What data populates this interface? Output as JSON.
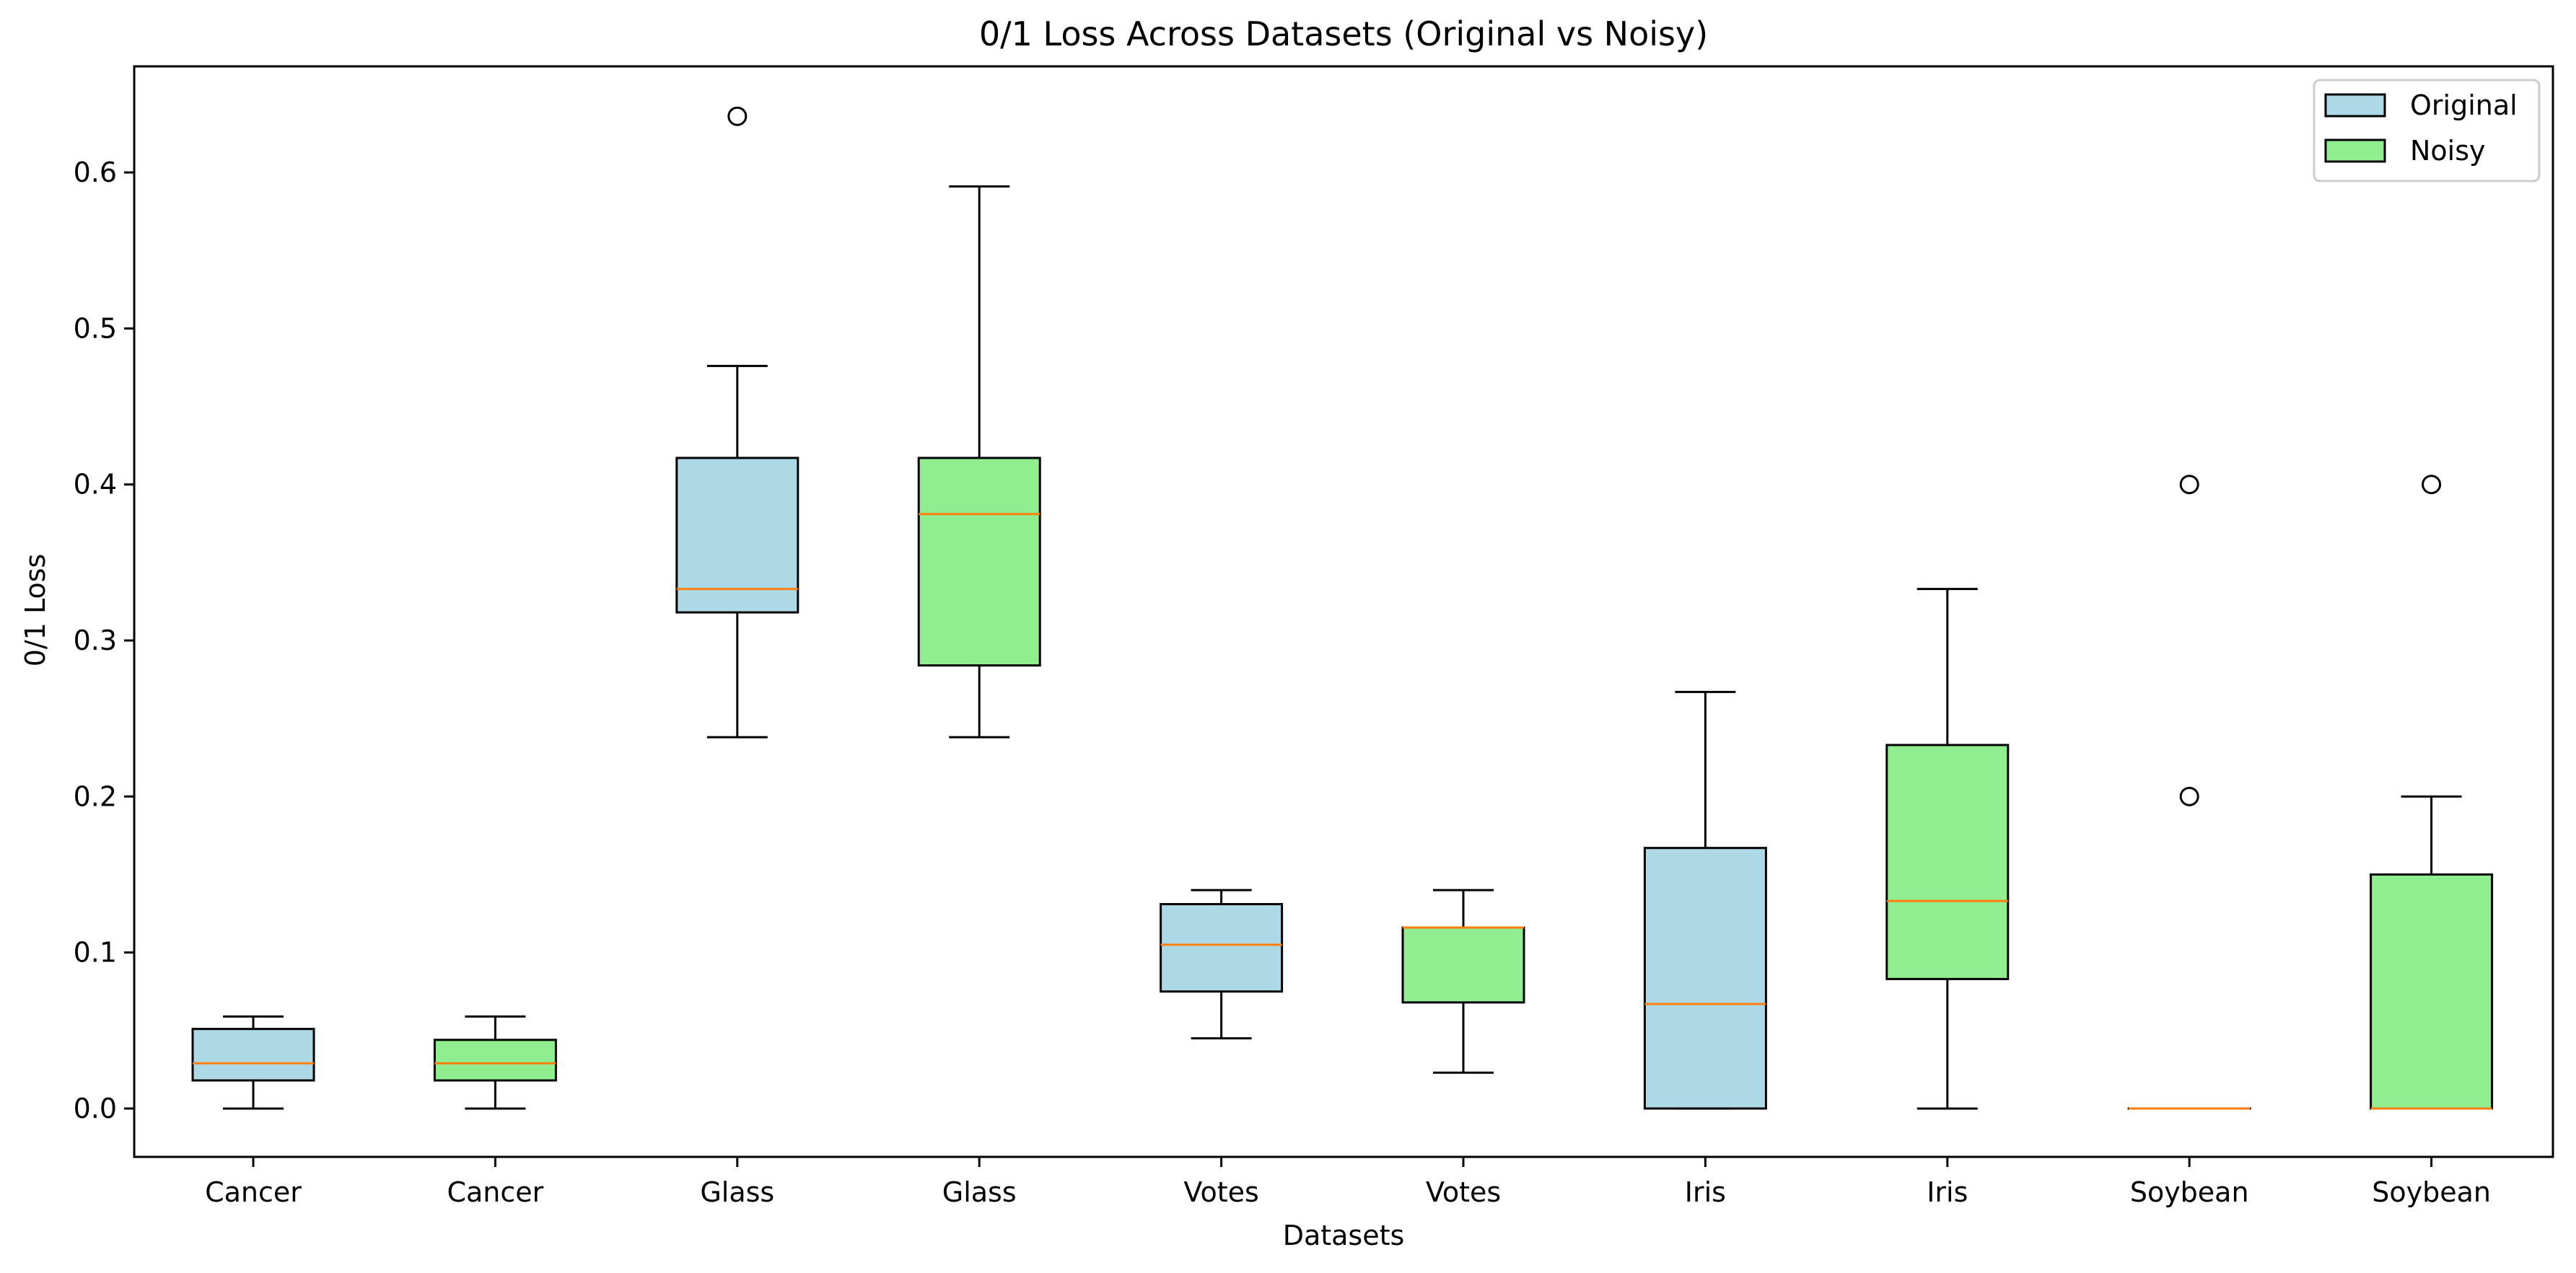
{
  "chart_data": {
    "type": "boxplot",
    "title": "0/1 Loss Across Datasets (Original vs Noisy)",
    "xlabel": "Datasets",
    "ylabel": "0/1 Loss",
    "ylim": [
      -0.031,
      0.668
    ],
    "yticks": [
      0.0,
      0.1,
      0.2,
      0.3,
      0.4,
      0.5,
      0.6
    ],
    "ytick_labels": [
      "0.0",
      "0.1",
      "0.2",
      "0.3",
      "0.4",
      "0.5",
      "0.6"
    ],
    "grid": false,
    "legend": {
      "placement": "top-right",
      "entries": [
        {
          "label": "Original",
          "color": "#add8e6"
        },
        {
          "label": "Noisy",
          "color": "#90ee90"
        }
      ]
    },
    "colors": {
      "original": "#add8e6",
      "noisy": "#90ee90",
      "median": "#ff7f0e",
      "edge": "#000000"
    },
    "categories": [
      "Cancer",
      "Cancer",
      "Glass",
      "Glass",
      "Votes",
      "Votes",
      "Iris",
      "Iris",
      "Soybean",
      "Soybean"
    ],
    "boxes": [
      {
        "label": "Cancer",
        "series": "Original",
        "whisker_low": 0.0,
        "q1": 0.018,
        "median": 0.029,
        "q3": 0.051,
        "whisker_high": 0.059,
        "outliers": []
      },
      {
        "label": "Cancer",
        "series": "Noisy",
        "whisker_low": 0.0,
        "q1": 0.018,
        "median": 0.029,
        "q3": 0.044,
        "whisker_high": 0.059,
        "outliers": []
      },
      {
        "label": "Glass",
        "series": "Original",
        "whisker_low": 0.238,
        "q1": 0.318,
        "median": 0.333,
        "q3": 0.417,
        "whisker_high": 0.476,
        "outliers": [
          0.636
        ]
      },
      {
        "label": "Glass",
        "series": "Noisy",
        "whisker_low": 0.238,
        "q1": 0.284,
        "median": 0.381,
        "q3": 0.417,
        "whisker_high": 0.591,
        "outliers": []
      },
      {
        "label": "Votes",
        "series": "Original",
        "whisker_low": 0.045,
        "q1": 0.075,
        "median": 0.105,
        "q3": 0.131,
        "whisker_high": 0.14,
        "outliers": []
      },
      {
        "label": "Votes",
        "series": "Noisy",
        "whisker_low": 0.023,
        "q1": 0.068,
        "median": 0.116,
        "q3": 0.116,
        "whisker_high": 0.14,
        "outliers": []
      },
      {
        "label": "Iris",
        "series": "Original",
        "whisker_low": 0.0,
        "q1": 0.0,
        "median": 0.067,
        "q3": 0.167,
        "whisker_high": 0.267,
        "outliers": []
      },
      {
        "label": "Iris",
        "series": "Noisy",
        "whisker_low": 0.0,
        "q1": 0.083,
        "median": 0.133,
        "q3": 0.233,
        "whisker_high": 0.333,
        "outliers": []
      },
      {
        "label": "Soybean",
        "series": "Original",
        "whisker_low": 0.0,
        "q1": 0.0,
        "median": 0.0,
        "q3": 0.0,
        "whisker_high": 0.0,
        "outliers": [
          0.2,
          0.4
        ]
      },
      {
        "label": "Soybean",
        "series": "Noisy",
        "whisker_low": 0.0,
        "q1": 0.0,
        "median": 0.0,
        "q3": 0.15,
        "whisker_high": 0.2,
        "outliers": [
          0.4
        ]
      }
    ]
  }
}
